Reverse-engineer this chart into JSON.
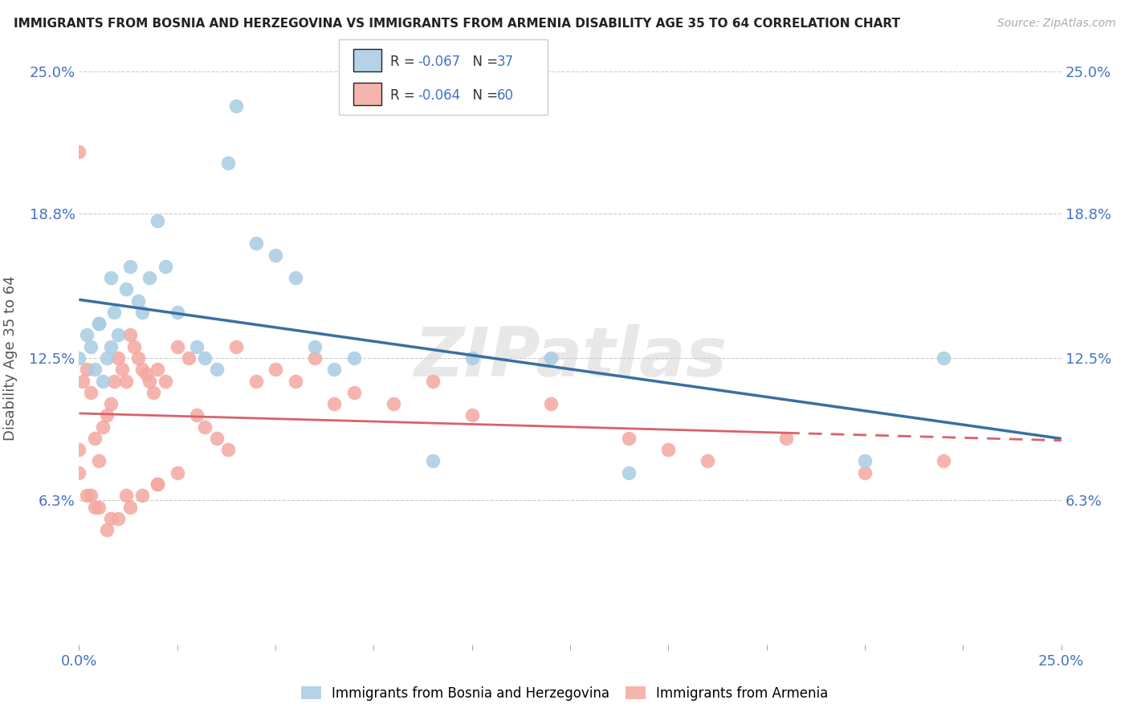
{
  "title": "IMMIGRANTS FROM BOSNIA AND HERZEGOVINA VS IMMIGRANTS FROM ARMENIA DISABILITY AGE 35 TO 64 CORRELATION CHART",
  "source": "Source: ZipAtlas.com",
  "ylabel": "Disability Age 35 to 64",
  "xlim": [
    0.0,
    0.25
  ],
  "ylim": [
    0.0,
    0.25
  ],
  "ytick_values": [
    0.0,
    0.063,
    0.125,
    0.188,
    0.25
  ],
  "ytick_labels": [
    "",
    "6.3%",
    "12.5%",
    "18.8%",
    "25.0%"
  ],
  "xtick_values": [
    0.0,
    0.025,
    0.05,
    0.075,
    0.1,
    0.125,
    0.15,
    0.175,
    0.2,
    0.225,
    0.25
  ],
  "legend_bosnia_r": "-0.067",
  "legend_bosnia_n": "37",
  "legend_armenia_r": "-0.064",
  "legend_armenia_n": "60",
  "bosnia_color": "#a8cce3",
  "armenia_color": "#f4a8a0",
  "bosnia_line_color": "#3b6fa0",
  "armenia_line_color": "#d9626a",
  "watermark": "ZIPatlas",
  "bosnia_x": [
    0.0,
    0.002,
    0.003,
    0.004,
    0.005,
    0.006,
    0.007,
    0.008,
    0.009,
    0.01,
    0.012,
    0.013,
    0.015,
    0.016,
    0.018,
    0.02,
    0.022,
    0.025,
    0.03,
    0.032,
    0.035,
    0.038,
    0.04,
    0.045,
    0.05,
    0.055,
    0.06,
    0.065,
    0.07,
    0.09,
    0.1,
    0.12,
    0.14,
    0.2,
    0.22,
    0.005,
    0.008
  ],
  "bosnia_y": [
    0.125,
    0.135,
    0.13,
    0.12,
    0.14,
    0.115,
    0.125,
    0.13,
    0.145,
    0.135,
    0.155,
    0.165,
    0.15,
    0.145,
    0.16,
    0.185,
    0.165,
    0.145,
    0.13,
    0.125,
    0.12,
    0.21,
    0.235,
    0.175,
    0.17,
    0.16,
    0.13,
    0.12,
    0.125,
    0.08,
    0.125,
    0.125,
    0.075,
    0.08,
    0.125,
    0.14,
    0.16
  ],
  "armenia_x": [
    0.0,
    0.001,
    0.002,
    0.003,
    0.004,
    0.005,
    0.006,
    0.007,
    0.008,
    0.009,
    0.01,
    0.011,
    0.012,
    0.013,
    0.014,
    0.015,
    0.016,
    0.017,
    0.018,
    0.019,
    0.02,
    0.022,
    0.025,
    0.028,
    0.03,
    0.032,
    0.035,
    0.038,
    0.04,
    0.045,
    0.05,
    0.055,
    0.06,
    0.065,
    0.07,
    0.08,
    0.09,
    0.1,
    0.12,
    0.14,
    0.15,
    0.16,
    0.18,
    0.2,
    0.22,
    0.0,
    0.003,
    0.005,
    0.007,
    0.01,
    0.013,
    0.016,
    0.02,
    0.025,
    0.0,
    0.002,
    0.004,
    0.008,
    0.012,
    0.02
  ],
  "armenia_y": [
    0.215,
    0.115,
    0.12,
    0.11,
    0.09,
    0.08,
    0.095,
    0.1,
    0.105,
    0.115,
    0.125,
    0.12,
    0.115,
    0.135,
    0.13,
    0.125,
    0.12,
    0.118,
    0.115,
    0.11,
    0.12,
    0.115,
    0.13,
    0.125,
    0.1,
    0.095,
    0.09,
    0.085,
    0.13,
    0.115,
    0.12,
    0.115,
    0.125,
    0.105,
    0.11,
    0.105,
    0.115,
    0.1,
    0.105,
    0.09,
    0.085,
    0.08,
    0.09,
    0.075,
    0.08,
    0.075,
    0.065,
    0.06,
    0.05,
    0.055,
    0.06,
    0.065,
    0.07,
    0.075,
    0.085,
    0.065,
    0.06,
    0.055,
    0.065,
    0.07
  ]
}
